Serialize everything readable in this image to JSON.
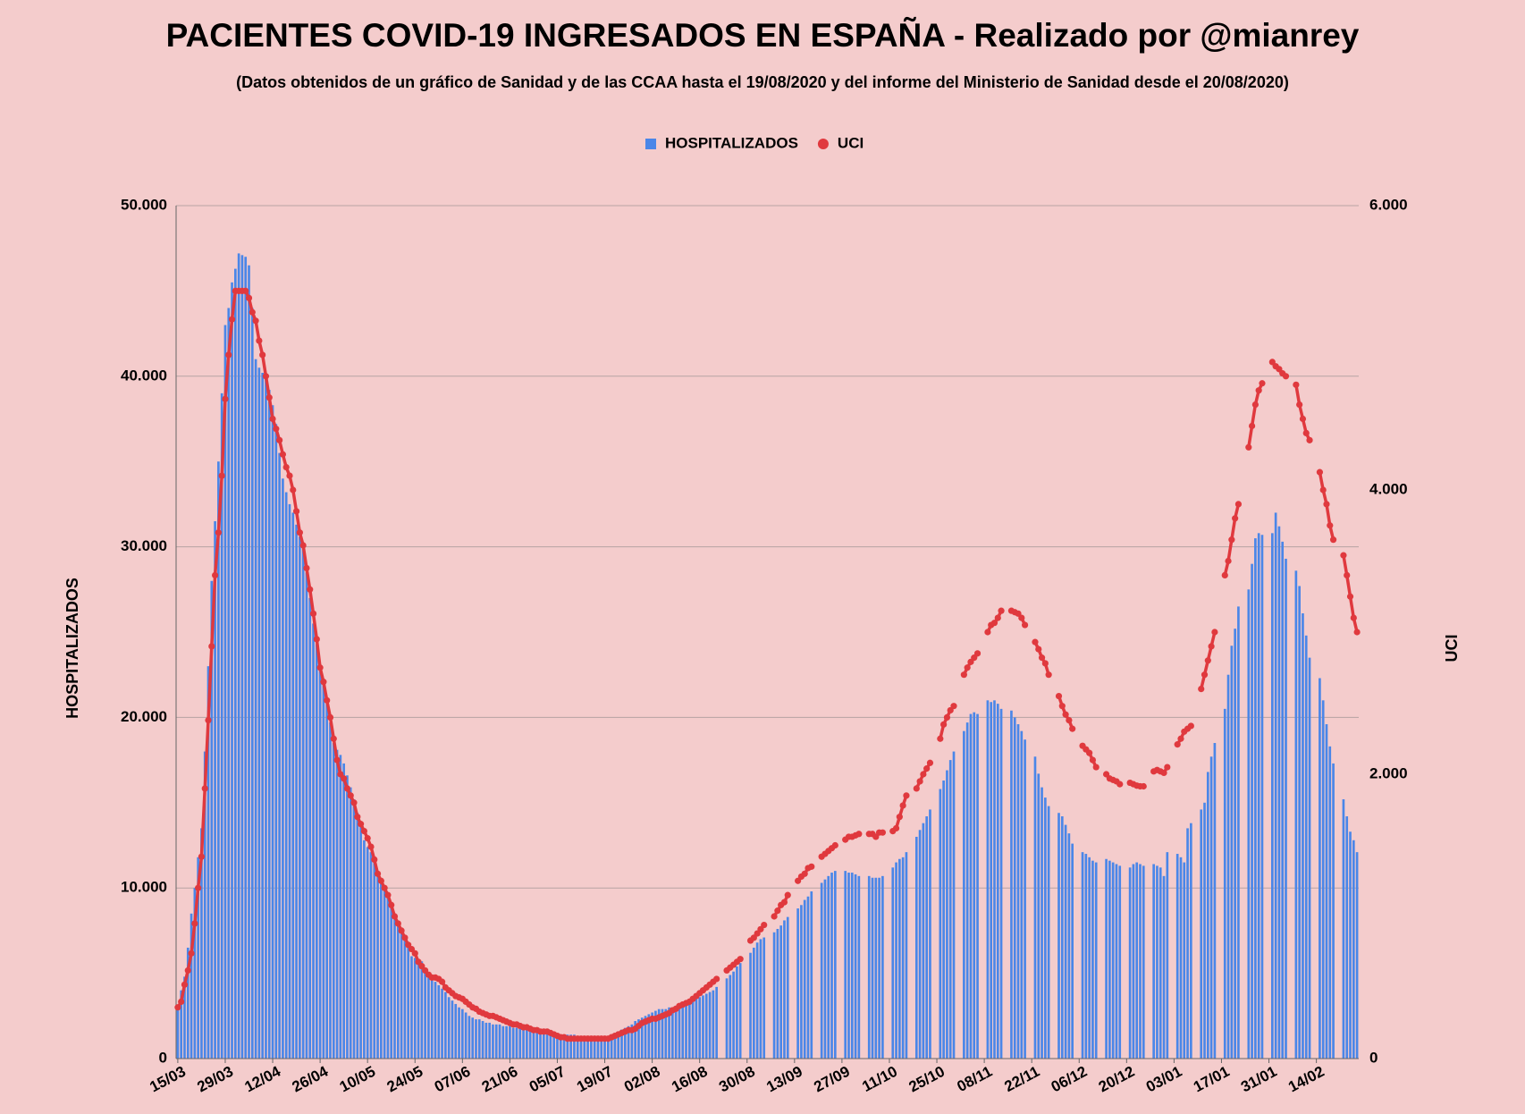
{
  "chart_data": {
    "type": "combo",
    "title": "PACIENTES COVID-19 INGRESADOS EN ESPAÑA - Realizado por @mianrey",
    "subtitle": "(Datos obtenidos de un gráfico de Sanidad y de las CCAA hasta el 19/08/2020 y del informe del Ministerio de Sanidad desde el 20/08/2020)",
    "y_label": "HOSPITALIZADOS",
    "y2_label": "UCI",
    "legend": "top",
    "grid": true,
    "ylim": [
      0,
      50000
    ],
    "yticks": [
      0,
      {
        "value": 10000,
        "label": "10.000"
      },
      {
        "value": 20000,
        "label": "20.000"
      },
      {
        "value": 30000,
        "label": "30.000"
      },
      {
        "value": 40000,
        "label": "40.000"
      },
      {
        "value": 50000,
        "label": "50.000"
      }
    ],
    "y2lim": [
      0,
      6000
    ],
    "y2ticks": [
      0,
      {
        "value": 2000,
        "label": "2.000"
      },
      {
        "value": 4000,
        "label": "4.000"
      },
      {
        "value": 6000,
        "label": "6.000"
      }
    ],
    "categories": [
      "15/03",
      null,
      null,
      null,
      null,
      null,
      null,
      null,
      null,
      null,
      null,
      null,
      null,
      null,
      "29/03",
      null,
      null,
      null,
      null,
      null,
      null,
      null,
      null,
      null,
      null,
      null,
      null,
      null,
      "12/04",
      null,
      null,
      null,
      null,
      null,
      null,
      null,
      null,
      null,
      null,
      null,
      null,
      null,
      "26/04",
      null,
      null,
      null,
      null,
      null,
      null,
      null,
      null,
      null,
      null,
      null,
      null,
      null,
      "10/05",
      null,
      null,
      null,
      null,
      null,
      null,
      null,
      null,
      null,
      null,
      null,
      null,
      null,
      "24/05",
      null,
      null,
      null,
      null,
      null,
      null,
      null,
      null,
      null,
      null,
      null,
      null,
      null,
      "07/06",
      null,
      null,
      null,
      null,
      null,
      null,
      null,
      null,
      null,
      null,
      null,
      null,
      null,
      "21/06",
      null,
      null,
      null,
      null,
      null,
      null,
      null,
      null,
      null,
      null,
      null,
      null,
      null,
      "05/07",
      null,
      null,
      null,
      null,
      null,
      null,
      null,
      null,
      null,
      null,
      null,
      null,
      null,
      "19/07",
      null,
      null,
      null,
      null,
      null,
      null,
      null,
      null,
      null,
      null,
      null,
      null,
      null,
      "02/08",
      null,
      null,
      null,
      null,
      null,
      null,
      null,
      null,
      null,
      null,
      null,
      null,
      null,
      "16/08",
      null,
      null,
      null,
      null,
      null,
      null,
      null,
      null,
      null,
      null,
      null,
      null,
      null,
      "30/08",
      null,
      null,
      null,
      null,
      null,
      null,
      null,
      null,
      null,
      null,
      null,
      null,
      null,
      "13/09",
      null,
      null,
      null,
      null,
      null,
      null,
      null,
      null,
      null,
      null,
      null,
      null,
      null,
      "27/09",
      null,
      null,
      null,
      null,
      null,
      null,
      null,
      null,
      null,
      null,
      null,
      null,
      null,
      "11/10",
      null,
      null,
      null,
      null,
      null,
      null,
      null,
      null,
      null,
      null,
      null,
      null,
      null,
      "25/10",
      null,
      null,
      null,
      null,
      null,
      null,
      null,
      null,
      null,
      null,
      null,
      null,
      null,
      "08/11",
      null,
      null,
      null,
      null,
      null,
      null,
      null,
      null,
      null,
      null,
      null,
      null,
      null,
      "22/11",
      null,
      null,
      null,
      null,
      null,
      null,
      null,
      null,
      null,
      null,
      null,
      null,
      null,
      "06/12",
      null,
      null,
      null,
      null,
      null,
      null,
      null,
      null,
      null,
      null,
      null,
      null,
      null,
      "20/12",
      null,
      null,
      null,
      null,
      null,
      null,
      null,
      null,
      null,
      null,
      null,
      null,
      null,
      "03/01",
      null,
      null,
      null,
      null,
      null,
      null,
      null,
      null,
      null,
      null,
      null,
      null,
      null,
      "17/01",
      null,
      null,
      null,
      null,
      null,
      null,
      null,
      null,
      null,
      null,
      null,
      null,
      null,
      "31/01",
      null,
      null,
      null,
      null,
      null,
      null,
      null,
      null,
      null,
      null,
      null,
      null,
      null,
      "14/02",
      null,
      null,
      null,
      null,
      null,
      null,
      null,
      null,
      null,
      null,
      null,
      null
    ],
    "series": [
      {
        "name": "HOSPITALIZADOS",
        "color": "#4a86e8",
        "values": [
          3000,
          4000,
          4800,
          6500,
          8500,
          10000,
          11800,
          13500,
          18000,
          23000,
          28000,
          31500,
          35000,
          39000,
          43000,
          44000,
          45500,
          46300,
          47200,
          47100,
          47000,
          46500,
          44000,
          41000,
          40500,
          40200,
          40000,
          39200,
          38300,
          37200,
          35500,
          34000,
          33200,
          32500,
          32000,
          31300,
          30600,
          30000,
          28500,
          27000,
          25500,
          24300,
          23100,
          22000,
          20800,
          19700,
          18500,
          18100,
          17800,
          17300,
          16600,
          15900,
          15200,
          14400,
          13600,
          12800,
          12400,
          12100,
          11500,
          10900,
          10500,
          10000,
          9500,
          9000,
          8500,
          8000,
          7500,
          7000,
          6500,
          6000,
          5900,
          5800,
          5700,
          5300,
          4900,
          4600,
          4500,
          4300,
          4100,
          3900,
          3600,
          3400,
          3200,
          3000,
          2900,
          2700,
          2500,
          2400,
          2300,
          2300,
          2200,
          2100,
          2100,
          2000,
          2000,
          2000,
          1900,
          1900,
          1900,
          1800,
          1800,
          1800,
          1700,
          1700,
          1700,
          1600,
          1600,
          1600,
          1500,
          1500,
          1500,
          1500,
          1400,
          1400,
          1400,
          1400,
          1400,
          1400,
          1300,
          1300,
          1300,
          1300,
          1300,
          1300,
          1300,
          1300,
          1300,
          1300,
          1400,
          1500,
          1600,
          1700,
          1800,
          1900,
          2000,
          2200,
          2300,
          2400,
          2500,
          2600,
          2700,
          2800,
          2900,
          2900,
          2900,
          3000,
          3000,
          3100,
          3100,
          3200,
          3200,
          3300,
          3400,
          3500,
          3600,
          3700,
          3800,
          3900,
          4000,
          4200,
          null,
          null,
          4700,
          4900,
          5100,
          5400,
          5600,
          null,
          null,
          6200,
          6500,
          6800,
          7000,
          7100,
          null,
          null,
          7400,
          7600,
          7800,
          8100,
          8300,
          null,
          null,
          8800,
          9000,
          9300,
          9500,
          9800,
          null,
          null,
          10300,
          10500,
          10700,
          10900,
          11000,
          null,
          null,
          11000,
          10900,
          10900,
          10800,
          10700,
          null,
          null,
          10700,
          10600,
          10600,
          10600,
          10700,
          null,
          null,
          11200,
          11500,
          11700,
          11800,
          12100,
          null,
          null,
          13000,
          13400,
          13800,
          14200,
          14600,
          null,
          null,
          15800,
          16300,
          16900,
          17500,
          18000,
          null,
          null,
          19200,
          19700,
          20200,
          20300,
          20200,
          null,
          null,
          21000,
          20900,
          21000,
          20800,
          20500,
          null,
          null,
          20400,
          20000,
          19600,
          19200,
          18700,
          null,
          null,
          17700,
          16700,
          15900,
          15300,
          14800,
          null,
          null,
          14400,
          14200,
          13700,
          13200,
          12600,
          null,
          null,
          12100,
          12000,
          11800,
          11600,
          11500,
          null,
          null,
          11700,
          11600,
          11500,
          11400,
          11300,
          null,
          null,
          11200,
          11400,
          11500,
          11400,
          11300,
          null,
          null,
          11400,
          11300,
          11200,
          10700,
          12100,
          null,
          null,
          12000,
          11800,
          11500,
          13500,
          13800,
          null,
          null,
          14600,
          15000,
          16800,
          17700,
          18500,
          null,
          null,
          20500,
          22500,
          24200,
          25200,
          26500,
          null,
          null,
          27500,
          29000,
          30500,
          30800,
          30700,
          null,
          null,
          30800,
          32000,
          31200,
          30300,
          29300,
          null,
          null,
          28600,
          27700,
          26100,
          24800,
          23500,
          null,
          null,
          22300,
          21000,
          19600,
          18300,
          17300,
          null,
          null,
          15200,
          14200,
          13300,
          12800,
          12100
        ]
      },
      {
        "name": "UCI",
        "color": "#e0393e",
        "axis": "y2",
        "values": [
          360,
          400,
          520,
          620,
          740,
          950,
          1200,
          1420,
          1900,
          2380,
          2900,
          3400,
          3700,
          4100,
          4640,
          4950,
          5200,
          5400,
          5400,
          5400,
          5400,
          5350,
          5250,
          5190,
          5050,
          4950,
          4800,
          4650,
          4500,
          4430,
          4350,
          4250,
          4160,
          4100,
          4000,
          3850,
          3700,
          3610,
          3450,
          3300,
          3130,
          2950,
          2750,
          2650,
          2520,
          2400,
          2250,
          2100,
          2000,
          1970,
          1900,
          1850,
          1800,
          1700,
          1650,
          1600,
          1550,
          1490,
          1400,
          1300,
          1250,
          1200,
          1150,
          1080,
          1000,
          950,
          900,
          850,
          800,
          770,
          740,
          680,
          650,
          620,
          590,
          570,
          570,
          560,
          540,
          500,
          480,
          460,
          440,
          430,
          420,
          400,
          380,
          360,
          350,
          330,
          320,
          310,
          300,
          300,
          290,
          280,
          270,
          260,
          250,
          240,
          240,
          230,
          220,
          220,
          210,
          200,
          200,
          190,
          190,
          190,
          180,
          170,
          160,
          150,
          150,
          140,
          140,
          140,
          140,
          140,
          140,
          140,
          140,
          140,
          140,
          140,
          140,
          140,
          150,
          160,
          170,
          180,
          190,
          200,
          200,
          210,
          230,
          250,
          260,
          270,
          280,
          280,
          290,
          300,
          310,
          320,
          340,
          350,
          370,
          380,
          390,
          400,
          420,
          440,
          460,
          480,
          500,
          520,
          540,
          560,
          null,
          null,
          620,
          640,
          660,
          680,
          700,
          null,
          null,
          830,
          850,
          880,
          910,
          940,
          null,
          null,
          1000,
          1040,
          1080,
          1100,
          1150,
          null,
          null,
          1250,
          1280,
          1300,
          1340,
          1350,
          null,
          null,
          1420,
          1440,
          1460,
          1480,
          1500,
          null,
          null,
          1540,
          1560,
          1560,
          1570,
          1580,
          null,
          null,
          1580,
          1580,
          1560,
          1590,
          1590,
          null,
          null,
          1600,
          1620,
          1700,
          1780,
          1850,
          null,
          null,
          1900,
          1950,
          2000,
          2040,
          2080,
          null,
          null,
          2250,
          2350,
          2400,
          2450,
          2480,
          null,
          null,
          2700,
          2750,
          2790,
          2820,
          2850,
          null,
          null,
          3000,
          3050,
          3065,
          3100,
          3150,
          null,
          null,
          3150,
          3140,
          3130,
          3100,
          3050,
          null,
          null,
          2930,
          2880,
          2820,
          2780,
          2700,
          null,
          null,
          2550,
          2480,
          2420,
          2380,
          2320,
          null,
          null,
          2200,
          2175,
          2150,
          2100,
          2050,
          null,
          null,
          2000,
          1970,
          1960,
          1950,
          1930,
          null,
          null,
          1940,
          1930,
          1920,
          1915,
          1915,
          null,
          null,
          2020,
          2030,
          2020,
          2010,
          2050,
          null,
          null,
          2210,
          2250,
          2300,
          2320,
          2340,
          null,
          null,
          2600,
          2700,
          2800,
          2900,
          3000,
          null,
          null,
          3400,
          3500,
          3650,
          3800,
          3900,
          null,
          null,
          4300,
          4450,
          4600,
          4700,
          4750,
          null,
          null,
          4900,
          4870,
          4850,
          4820,
          4800,
          null,
          null,
          4740,
          4600,
          4500,
          4400,
          4350,
          null,
          null,
          4125,
          4000,
          3900,
          3750,
          3650,
          null,
          null,
          3540,
          3400,
          3250,
          3100,
          3000
        ]
      }
    ]
  }
}
